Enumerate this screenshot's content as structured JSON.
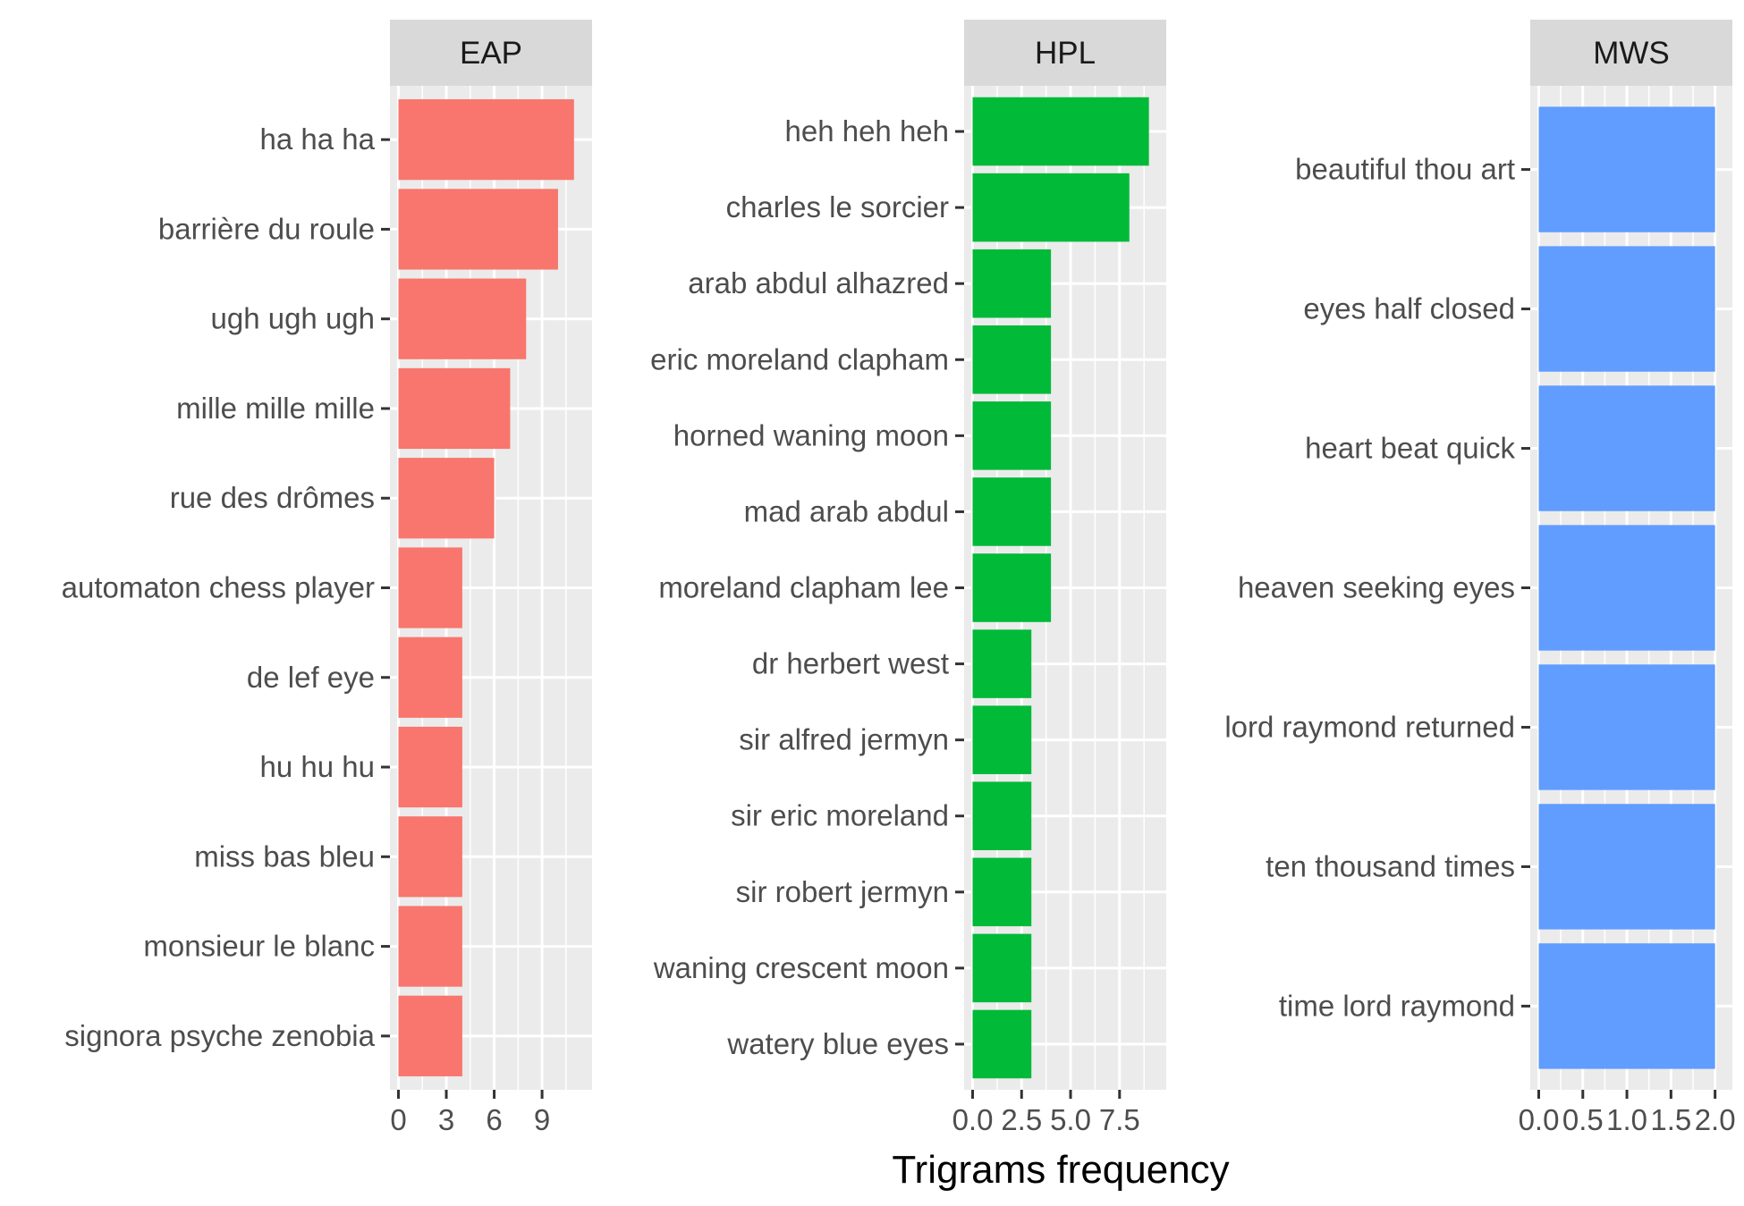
{
  "chart_data": {
    "type": "bar",
    "orientation": "horizontal",
    "xlabel": "Trigrams frequency",
    "ylabel": "",
    "grid": true,
    "legend": "none",
    "panels": [
      {
        "strip": "EAP",
        "color": "#F8766D",
        "xlim": [
          0,
          11.6
        ],
        "x_ticks": [
          0,
          3,
          6,
          9
        ],
        "x_tick_labels": [
          "0",
          "3",
          "6",
          "9"
        ],
        "categories": [
          "ha ha ha",
          "barrière du roule",
          "ugh ugh ugh",
          "mille mille mille",
          "rue des drômes",
          "automaton chess player",
          "de lef eye",
          "hu hu hu",
          "miss bas bleu",
          "monsieur le blanc",
          "signora psyche zenobia"
        ],
        "values": [
          11,
          10,
          8,
          7,
          6,
          4,
          4,
          4,
          4,
          4,
          4
        ]
      },
      {
        "strip": "HPL",
        "color": "#00BA38",
        "xlim": [
          0,
          9.45
        ],
        "x_ticks": [
          0,
          2.5,
          5,
          7.5
        ],
        "x_tick_labels": [
          "0.0",
          "2.5",
          "5.0",
          "7.5"
        ],
        "categories": [
          "heh heh heh",
          "charles le sorcier",
          "arab abdul alhazred",
          "eric moreland clapham",
          "horned waning moon",
          "mad arab abdul",
          "moreland clapham lee",
          "dr herbert west",
          "sir alfred jermyn",
          "sir eric moreland",
          "sir robert jermyn",
          "waning crescent moon",
          "watery blue eyes"
        ],
        "values": [
          9,
          8,
          4,
          4,
          4,
          4,
          4,
          3,
          3,
          3,
          3,
          3,
          3
        ]
      },
      {
        "strip": "MWS",
        "color": "#619CFF",
        "xlim": [
          0,
          2.1
        ],
        "x_ticks": [
          0,
          0.5,
          1,
          1.5,
          2
        ],
        "x_tick_labels": [
          "0.0",
          "0.5",
          "1.0",
          "1.5",
          "2.0"
        ],
        "categories": [
          "beautiful thou art",
          "eyes half closed",
          "heart beat quick",
          "heaven seeking eyes",
          "lord raymond returned",
          "ten thousand times",
          "time lord raymond"
        ],
        "values": [
          2,
          2,
          2,
          2,
          2,
          2,
          2
        ]
      }
    ]
  }
}
